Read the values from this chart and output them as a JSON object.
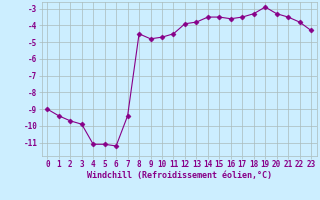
{
  "x": [
    0,
    1,
    2,
    3,
    4,
    5,
    6,
    7,
    8,
    9,
    10,
    11,
    12,
    13,
    14,
    15,
    16,
    17,
    18,
    19,
    20,
    21,
    22,
    23
  ],
  "y": [
    -9.0,
    -9.4,
    -9.7,
    -9.9,
    -11.1,
    -11.1,
    -11.2,
    -9.4,
    -4.5,
    -4.8,
    -4.7,
    -4.5,
    -3.9,
    -3.8,
    -3.5,
    -3.5,
    -3.6,
    -3.5,
    -3.3,
    -2.9,
    -3.3,
    -3.5,
    -3.8,
    -4.3
  ],
  "line_color": "#880088",
  "marker": "D",
  "marker_size": 2.5,
  "line_width": 0.8,
  "xlabel": "Windchill (Refroidissement éolien,°C)",
  "xlabel_fontsize": 6,
  "ylim": [
    -11.8,
    -2.6
  ],
  "xlim": [
    -0.5,
    23.5
  ],
  "yticks": [
    -11,
    -10,
    -9,
    -8,
    -7,
    -6,
    -5,
    -4,
    -3
  ],
  "xticks": [
    0,
    1,
    2,
    3,
    4,
    5,
    6,
    7,
    8,
    9,
    10,
    11,
    12,
    13,
    14,
    15,
    16,
    17,
    18,
    19,
    20,
    21,
    22,
    23
  ],
  "grid_color": "#aabbbb",
  "background_color": "#cceeff",
  "tick_fontsize": 5.5,
  "tick_color": "#880088",
  "label_color": "#880088"
}
